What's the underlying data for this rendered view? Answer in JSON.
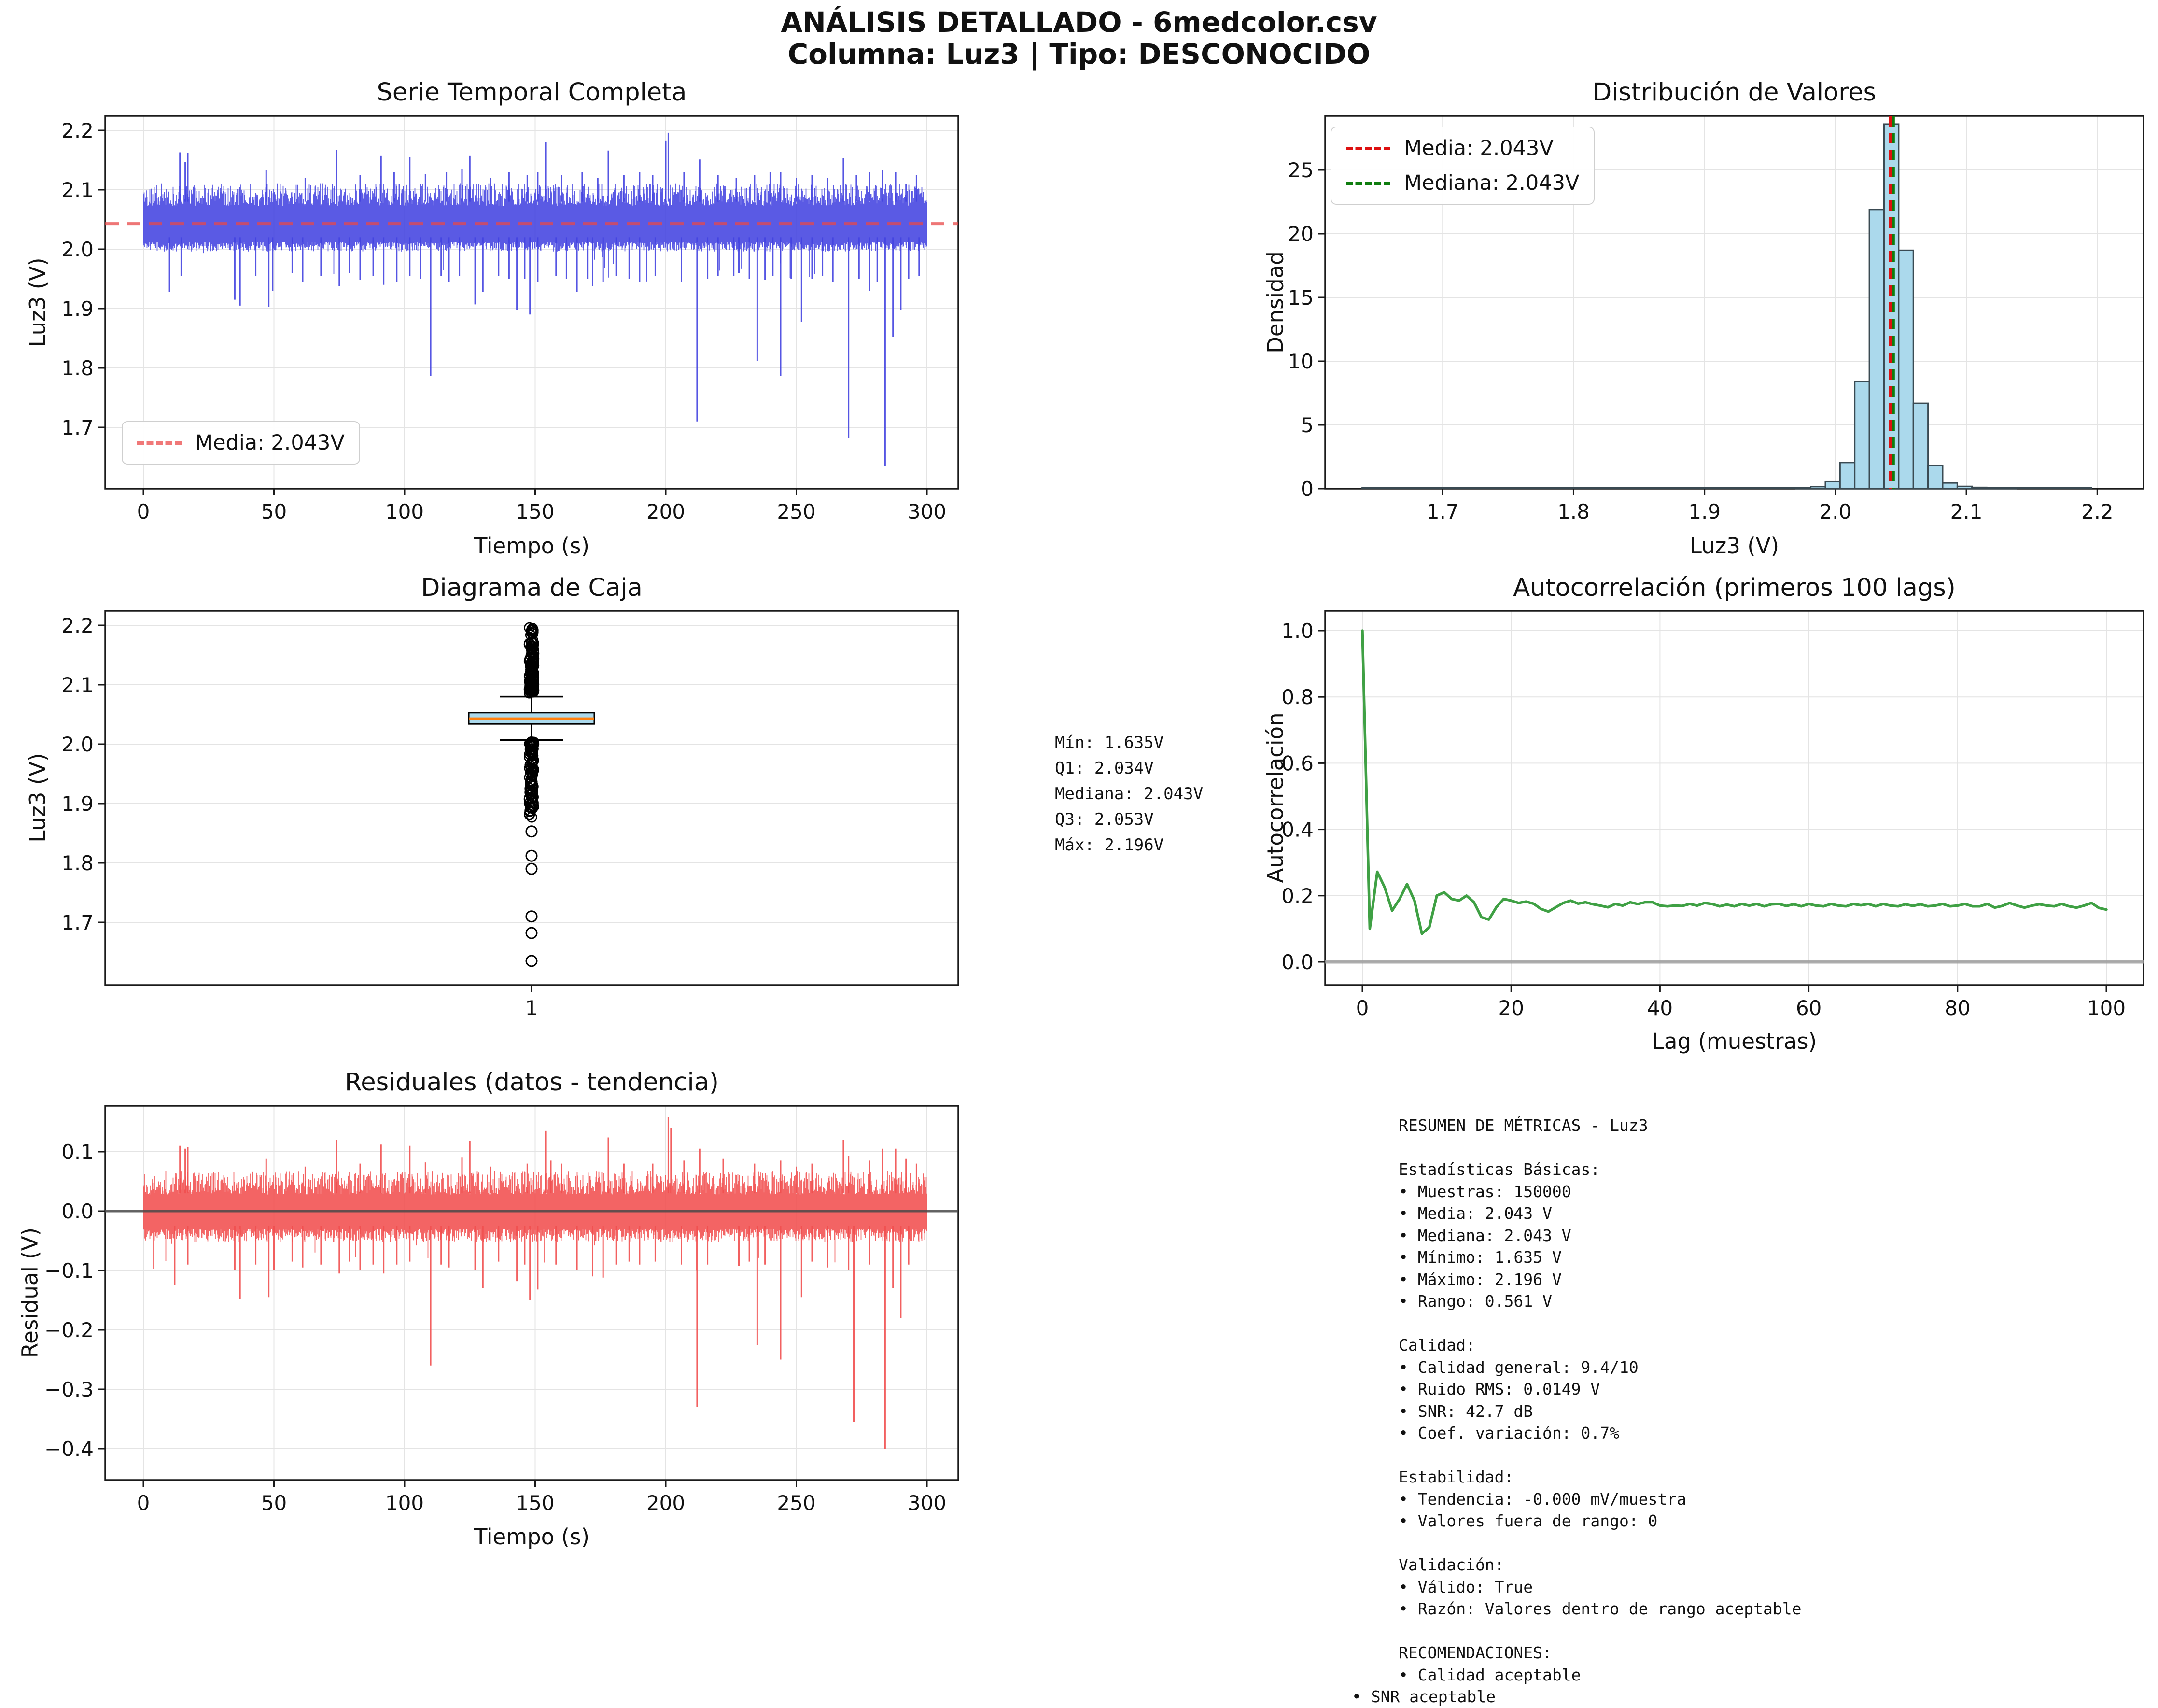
{
  "title": {
    "line1": "ANÁLISIS DETALLADO - 6medcolor.csv",
    "line2": "Columna: Luz3 | Tipo: DESCONOCIDO"
  },
  "panels": {
    "serie": {
      "title": "Serie Temporal Completa",
      "xlabel": "Tiempo (s)",
      "ylabel": "Luz3 (V)",
      "legend_media": "Media: 2.043V"
    },
    "distribucion": {
      "title": "Distribución de Valores",
      "xlabel": "Luz3 (V)",
      "ylabel": "Densidad",
      "legend_media": "Media: 2.043V",
      "legend_mediana": "Mediana: 2.043V"
    },
    "caja": {
      "title": "Diagrama de Caja",
      "ylabel": "Luz3 (V)",
      "xtick": "1",
      "stats_text": "Mín: 1.635V\nQ1: 2.034V\nMediana: 2.043V\nQ3: 2.053V\nMáx: 2.196V"
    },
    "autocorrelacion": {
      "title": "Autocorrelación (primeros 100 lags)",
      "xlabel": "Lag (muestras)",
      "ylabel": "Autocorrelación"
    },
    "residuales": {
      "title": "Residuales (datos - tendencia)",
      "xlabel": "Tiempo (s)",
      "ylabel": "Residual (V)"
    },
    "resumen": {
      "lines": [
        "RESUMEN DE MÉTRICAS - Luz3",
        "",
        "Estadísticas Básicas:",
        "• Muestras: 150000",
        "• Media: 2.043 V",
        "• Mediana: 2.043 V",
        "• Mínimo: 1.635 V",
        "• Máximo: 2.196 V",
        "• Rango: 0.561 V",
        "",
        "Calidad:",
        "• Calidad general: 9.4/10",
        "• Ruido RMS: 0.0149 V",
        "• SNR: 42.7 dB",
        "• Coef. variación: 0.7%",
        "",
        "Estabilidad:",
        "• Tendencia: -0.000 mV/muestra",
        "• Valores fuera de rango: 0",
        "",
        "Validación:",
        "• Válido: True",
        "• Razón: Valores dentro de rango aceptable",
        "",
        "RECOMENDACIONES:",
        "• Calidad aceptable",
        "• SNR aceptable"
      ]
    }
  },
  "colors": {
    "series_blue": "#4343e0",
    "mean_dash_red": "#e84848",
    "legend_mean_pink": "#f07878",
    "hist_fill": "#abd9ec",
    "hist_edge": "#3a4a52",
    "hist_mean_red": "#dd1111",
    "hist_median_green": "#0f7d0f",
    "box_fill": "#abd9ec",
    "box_median_orange": "#ff7f0e",
    "acf_green": "#3fa044",
    "resid_red": "#f14f4f",
    "zero_gray": "#999999",
    "grid_gray": "#e4e4e4",
    "spine_black": "#1a1a1a"
  },
  "chart_data": [
    {
      "id": "serie_temporal",
      "type": "line",
      "title": "Serie Temporal Completa",
      "xlabel": "Tiempo (s)",
      "ylabel": "Luz3 (V)",
      "xlim": [
        -14.6,
        312
      ],
      "ylim": [
        1.597,
        2.224
      ],
      "xticks": [
        0,
        50,
        100,
        150,
        200,
        250,
        300
      ],
      "yticks": [
        2.2,
        2.1,
        2.0,
        1.9,
        1.8,
        1.7
      ],
      "mean_line": 2.043,
      "legend": "Media: 2.043V",
      "band": {
        "top_min": 2.073,
        "top_max": 2.111,
        "bottom_min": 1.996,
        "bottom_max": 2.012
      },
      "spikes_down": [
        [
          10,
          1.928
        ],
        [
          14.5,
          1.955
        ],
        [
          35,
          1.915
        ],
        [
          37,
          1.905
        ],
        [
          43,
          1.955
        ],
        [
          48,
          1.903
        ],
        [
          49.5,
          1.93
        ],
        [
          57,
          1.96
        ],
        [
          61,
          1.945
        ],
        [
          68,
          1.955
        ],
        [
          75,
          1.938
        ],
        [
          79,
          1.96
        ],
        [
          83,
          1.948
        ],
        [
          88,
          1.955
        ],
        [
          92,
          1.94
        ],
        [
          97,
          1.945
        ],
        [
          102,
          1.955
        ],
        [
          106,
          1.95
        ],
        [
          110,
          1.787
        ],
        [
          114,
          1.955
        ],
        [
          117,
          1.945
        ],
        [
          121,
          1.955
        ],
        [
          127,
          1.907
        ],
        [
          130,
          1.928
        ],
        [
          136,
          1.955
        ],
        [
          140,
          1.95
        ],
        [
          143,
          1.898
        ],
        [
          146,
          1.95
        ],
        [
          148,
          1.89
        ],
        [
          151,
          1.945
        ],
        [
          158,
          1.955
        ],
        [
          162,
          1.95
        ],
        [
          166,
          1.928
        ],
        [
          170,
          1.95
        ],
        [
          172,
          1.938
        ],
        [
          176,
          1.945
        ],
        [
          181,
          1.955
        ],
        [
          186,
          1.95
        ],
        [
          190,
          1.945
        ],
        [
          196,
          1.955
        ],
        [
          206,
          1.945
        ],
        [
          212,
          1.71
        ],
        [
          216,
          1.95
        ],
        [
          220,
          1.955
        ],
        [
          226,
          1.955
        ],
        [
          228,
          1.96
        ],
        [
          232,
          1.95
        ],
        [
          235,
          1.812
        ],
        [
          238,
          1.948
        ],
        [
          241,
          1.955
        ],
        [
          244,
          1.787
        ],
        [
          248,
          1.95
        ],
        [
          252,
          1.878
        ],
        [
          256,
          1.95
        ],
        [
          260,
          1.955
        ],
        [
          264,
          1.945
        ],
        [
          270,
          1.682
        ],
        [
          274,
          1.95
        ],
        [
          278,
          1.93
        ],
        [
          281,
          1.945
        ],
        [
          284,
          1.635
        ],
        [
          287,
          1.852
        ],
        [
          290,
          1.898
        ],
        [
          293,
          1.95
        ],
        [
          297,
          1.955
        ]
      ],
      "spikes_up": [
        [
          14,
          2.163
        ],
        [
          16,
          2.147
        ],
        [
          17,
          2.162
        ],
        [
          47,
          2.133
        ],
        [
          62,
          2.12
        ],
        [
          74,
          2.167
        ],
        [
          83,
          2.125
        ],
        [
          91,
          2.157
        ],
        [
          96,
          2.13
        ],
        [
          102,
          2.155
        ],
        [
          108,
          2.126
        ],
        [
          116,
          2.13
        ],
        [
          122,
          2.135
        ],
        [
          125,
          2.157
        ],
        [
          133,
          2.12
        ],
        [
          140,
          2.13
        ],
        [
          147,
          2.125
        ],
        [
          151,
          2.13
        ],
        [
          154,
          2.18
        ],
        [
          160,
          2.125
        ],
        [
          168,
          2.13
        ],
        [
          174,
          2.12
        ],
        [
          178,
          2.166
        ],
        [
          184,
          2.125
        ],
        [
          190,
          2.13
        ],
        [
          195,
          2.125
        ],
        [
          200,
          2.183
        ],
        [
          201,
          2.196
        ],
        [
          207,
          2.13
        ],
        [
          213,
          2.151
        ],
        [
          220,
          2.125
        ],
        [
          227,
          2.12
        ],
        [
          234,
          2.125
        ],
        [
          240,
          2.13
        ],
        [
          244,
          2.13
        ],
        [
          250,
          2.12
        ],
        [
          256,
          2.125
        ],
        [
          262,
          2.12
        ],
        [
          268,
          2.153
        ],
        [
          273,
          2.125
        ],
        [
          278,
          2.13
        ],
        [
          283,
          2.133
        ],
        [
          288,
          2.13
        ],
        [
          292,
          2.11
        ],
        [
          296,
          2.125
        ]
      ]
    },
    {
      "id": "distribucion",
      "type": "bar",
      "title": "Distribución de Valores",
      "xlabel": "Luz3 (V)",
      "ylabel": "Densidad",
      "xlim": [
        1.61,
        2.235
      ],
      "ylim": [
        0,
        29.24
      ],
      "xticks": [
        1.7,
        1.8,
        1.9,
        2.0,
        2.1,
        2.2
      ],
      "yticks": [
        0,
        5,
        10,
        15,
        20,
        25
      ],
      "bin_width": 0.0112,
      "bins": [
        [
          1.9755,
          0.07
        ],
        [
          1.9867,
          0.16
        ],
        [
          1.9979,
          0.55
        ],
        [
          2.0091,
          2.05
        ],
        [
          2.0203,
          8.4
        ],
        [
          2.0315,
          21.9
        ],
        [
          2.0427,
          28.6
        ],
        [
          2.0539,
          18.7
        ],
        [
          2.0651,
          6.7
        ],
        [
          2.0763,
          1.8
        ],
        [
          2.0875,
          0.45
        ],
        [
          2.0987,
          0.18
        ],
        [
          2.1099,
          0.1
        ],
        [
          2.1211,
          0.06
        ],
        [
          2.1323,
          0.05
        ]
      ],
      "baseline_span": [
        1.638,
        2.196
      ],
      "mean_line": 2.043,
      "median_line": 2.0435,
      "legend": [
        "Media: 2.043V",
        "Mediana: 2.043V"
      ]
    },
    {
      "id": "diagrama_caja",
      "type": "boxplot",
      "title": "Diagrama de Caja",
      "ylabel": "Luz3 (V)",
      "xtick": "1",
      "yticks": [
        2.2,
        2.1,
        2.0,
        1.9,
        1.8,
        1.7
      ],
      "stats": {
        "min": 1.635,
        "q1": 2.034,
        "median": 2.043,
        "q3": 2.053,
        "max": 2.196,
        "whisker_low": 2.007,
        "whisker_high": 2.08
      },
      "outlier_clusters": [
        {
          "from": 2.086,
          "to": 2.199,
          "count": 110
        },
        {
          "from": 1.877,
          "to": 2.004,
          "count": 95
        }
      ],
      "outliers_discrete": [
        1.853,
        1.812,
        1.79,
        1.71,
        1.682,
        1.635
      ]
    },
    {
      "id": "autocorrelacion",
      "type": "line",
      "title": "Autocorrelación (primeros 100 lags)",
      "xlabel": "Lag (muestras)",
      "ylabel": "Autocorrelación",
      "xlim": [
        -5,
        105
      ],
      "ylim": [
        -0.07,
        1.06
      ],
      "xticks": [
        0,
        20,
        40,
        60,
        80,
        100
      ],
      "yticks": [
        0.0,
        0.2,
        0.4,
        0.6,
        0.8,
        1.0
      ],
      "zero_line": true,
      "values": [
        1.0,
        0.1,
        0.272,
        0.225,
        0.155,
        0.19,
        0.235,
        0.185,
        0.085,
        0.105,
        0.2,
        0.21,
        0.19,
        0.185,
        0.2,
        0.18,
        0.135,
        0.128,
        0.165,
        0.19,
        0.185,
        0.178,
        0.182,
        0.176,
        0.16,
        0.152,
        0.165,
        0.178,
        0.185,
        0.176,
        0.18,
        0.174,
        0.17,
        0.165,
        0.175,
        0.17,
        0.18,
        0.175,
        0.18,
        0.18,
        0.17,
        0.168,
        0.17,
        0.169,
        0.175,
        0.17,
        0.178,
        0.175,
        0.168,
        0.173,
        0.168,
        0.175,
        0.17,
        0.175,
        0.168,
        0.174,
        0.175,
        0.169,
        0.174,
        0.168,
        0.175,
        0.17,
        0.168,
        0.175,
        0.17,
        0.168,
        0.175,
        0.171,
        0.175,
        0.168,
        0.175,
        0.17,
        0.168,
        0.174,
        0.169,
        0.174,
        0.168,
        0.17,
        0.175,
        0.168,
        0.17,
        0.175,
        0.168,
        0.168,
        0.175,
        0.164,
        0.169,
        0.178,
        0.17,
        0.164,
        0.17,
        0.174,
        0.17,
        0.168,
        0.175,
        0.168,
        0.164,
        0.17,
        0.178,
        0.163,
        0.158
      ]
    },
    {
      "id": "residuales",
      "type": "line",
      "title": "Residuales (datos - tendencia)",
      "xlabel": "Tiempo (s)",
      "ylabel": "Residual (V)",
      "xlim": [
        -14.6,
        312
      ],
      "ylim": [
        -0.453,
        0.177
      ],
      "xticks": [
        0,
        50,
        100,
        150,
        200,
        250,
        300
      ],
      "yticks": [
        0.1,
        0.0,
        -0.1,
        -0.2,
        -0.3,
        -0.4
      ],
      "zero_line": true,
      "band": {
        "top_min": 0.028,
        "top_max": 0.068,
        "bottom_min": -0.052,
        "bottom_max": -0.03
      },
      "spikes_down": [
        [
          12,
          -0.125
        ],
        [
          17,
          -0.09
        ],
        [
          35,
          -0.1
        ],
        [
          37,
          -0.148
        ],
        [
          43,
          -0.09
        ],
        [
          48,
          -0.145
        ],
        [
          50,
          -0.1
        ],
        [
          57,
          -0.085
        ],
        [
          61,
          -0.095
        ],
        [
          68,
          -0.09
        ],
        [
          75,
          -0.105
        ],
        [
          79,
          -0.085
        ],
        [
          83,
          -0.1
        ],
        [
          88,
          -0.09
        ],
        [
          92,
          -0.105
        ],
        [
          97,
          -0.09
        ],
        [
          102,
          -0.085
        ],
        [
          110,
          -0.26
        ],
        [
          114,
          -0.09
        ],
        [
          117,
          -0.095
        ],
        [
          127,
          -0.1
        ],
        [
          130,
          -0.13
        ],
        [
          136,
          -0.085
        ],
        [
          143,
          -0.118
        ],
        [
          146,
          -0.09
        ],
        [
          148,
          -0.15
        ],
        [
          151,
          -0.132
        ],
        [
          158,
          -0.09
        ],
        [
          166,
          -0.1
        ],
        [
          172,
          -0.11
        ],
        [
          176,
          -0.112
        ],
        [
          181,
          -0.09
        ],
        [
          186,
          -0.085
        ],
        [
          190,
          -0.09
        ],
        [
          196,
          -0.085
        ],
        [
          206,
          -0.09
        ],
        [
          212,
          -0.33
        ],
        [
          216,
          -0.09
        ],
        [
          228,
          -0.092
        ],
        [
          232,
          -0.085
        ],
        [
          235,
          -0.226
        ],
        [
          238,
          -0.09
        ],
        [
          244,
          -0.25
        ],
        [
          252,
          -0.145
        ],
        [
          256,
          -0.085
        ],
        [
          262,
          -0.095
        ],
        [
          270,
          -0.1
        ],
        [
          272,
          -0.355
        ],
        [
          278,
          -0.09
        ],
        [
          284,
          -0.4
        ],
        [
          287,
          -0.13
        ],
        [
          290,
          -0.18
        ],
        [
          293,
          -0.09
        ]
      ],
      "spikes_up": [
        [
          14,
          0.11
        ],
        [
          16,
          0.105
        ],
        [
          17,
          0.108
        ],
        [
          47,
          0.088
        ],
        [
          62,
          0.075
        ],
        [
          74,
          0.12
        ],
        [
          83,
          0.08
        ],
        [
          91,
          0.112
        ],
        [
          102,
          0.11
        ],
        [
          108,
          0.082
        ],
        [
          122,
          0.09
        ],
        [
          125,
          0.118
        ],
        [
          133,
          0.075
        ],
        [
          147,
          0.08
        ],
        [
          154,
          0.135
        ],
        [
          156,
          0.085
        ],
        [
          160,
          0.08
        ],
        [
          178,
          0.124
        ],
        [
          184,
          0.08
        ],
        [
          195,
          0.08
        ],
        [
          201,
          0.158
        ],
        [
          202,
          0.14
        ],
        [
          207,
          0.085
        ],
        [
          213,
          0.105
        ],
        [
          222,
          0.088
        ],
        [
          234,
          0.08
        ],
        [
          244,
          0.085
        ],
        [
          250,
          0.075
        ],
        [
          256,
          0.08
        ],
        [
          268,
          0.12
        ],
        [
          270,
          0.093
        ],
        [
          278,
          0.085
        ],
        [
          283,
          0.105
        ],
        [
          288,
          0.105
        ],
        [
          292,
          0.088
        ],
        [
          296,
          0.08
        ]
      ]
    }
  ]
}
